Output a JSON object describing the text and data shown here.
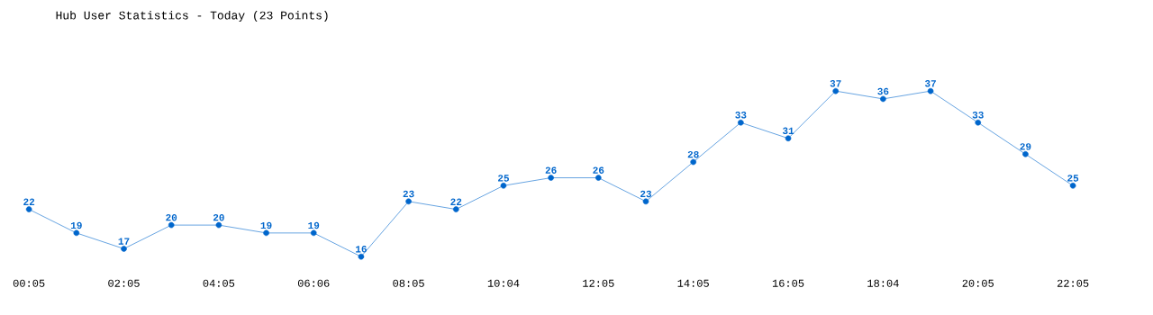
{
  "chart_data": {
    "type": "line",
    "title": "Hub User Statistics - Today (23 Points)",
    "categories": [
      "00:05",
      null,
      "02:05",
      null,
      "04:05",
      null,
      "06:06",
      null,
      "08:05",
      null,
      "10:04",
      null,
      "12:05",
      null,
      "14:05",
      null,
      "16:05",
      null,
      "18:04",
      null,
      "20:05",
      null,
      "22:05"
    ],
    "values": [
      22,
      19,
      17,
      20,
      20,
      19,
      19,
      16,
      23,
      22,
      25,
      26,
      26,
      23,
      28,
      33,
      31,
      37,
      36,
      37,
      33,
      29,
      25
    ],
    "color": "#0066cc",
    "marker": "circle",
    "line_style": "solid",
    "data_labels": true
  }
}
